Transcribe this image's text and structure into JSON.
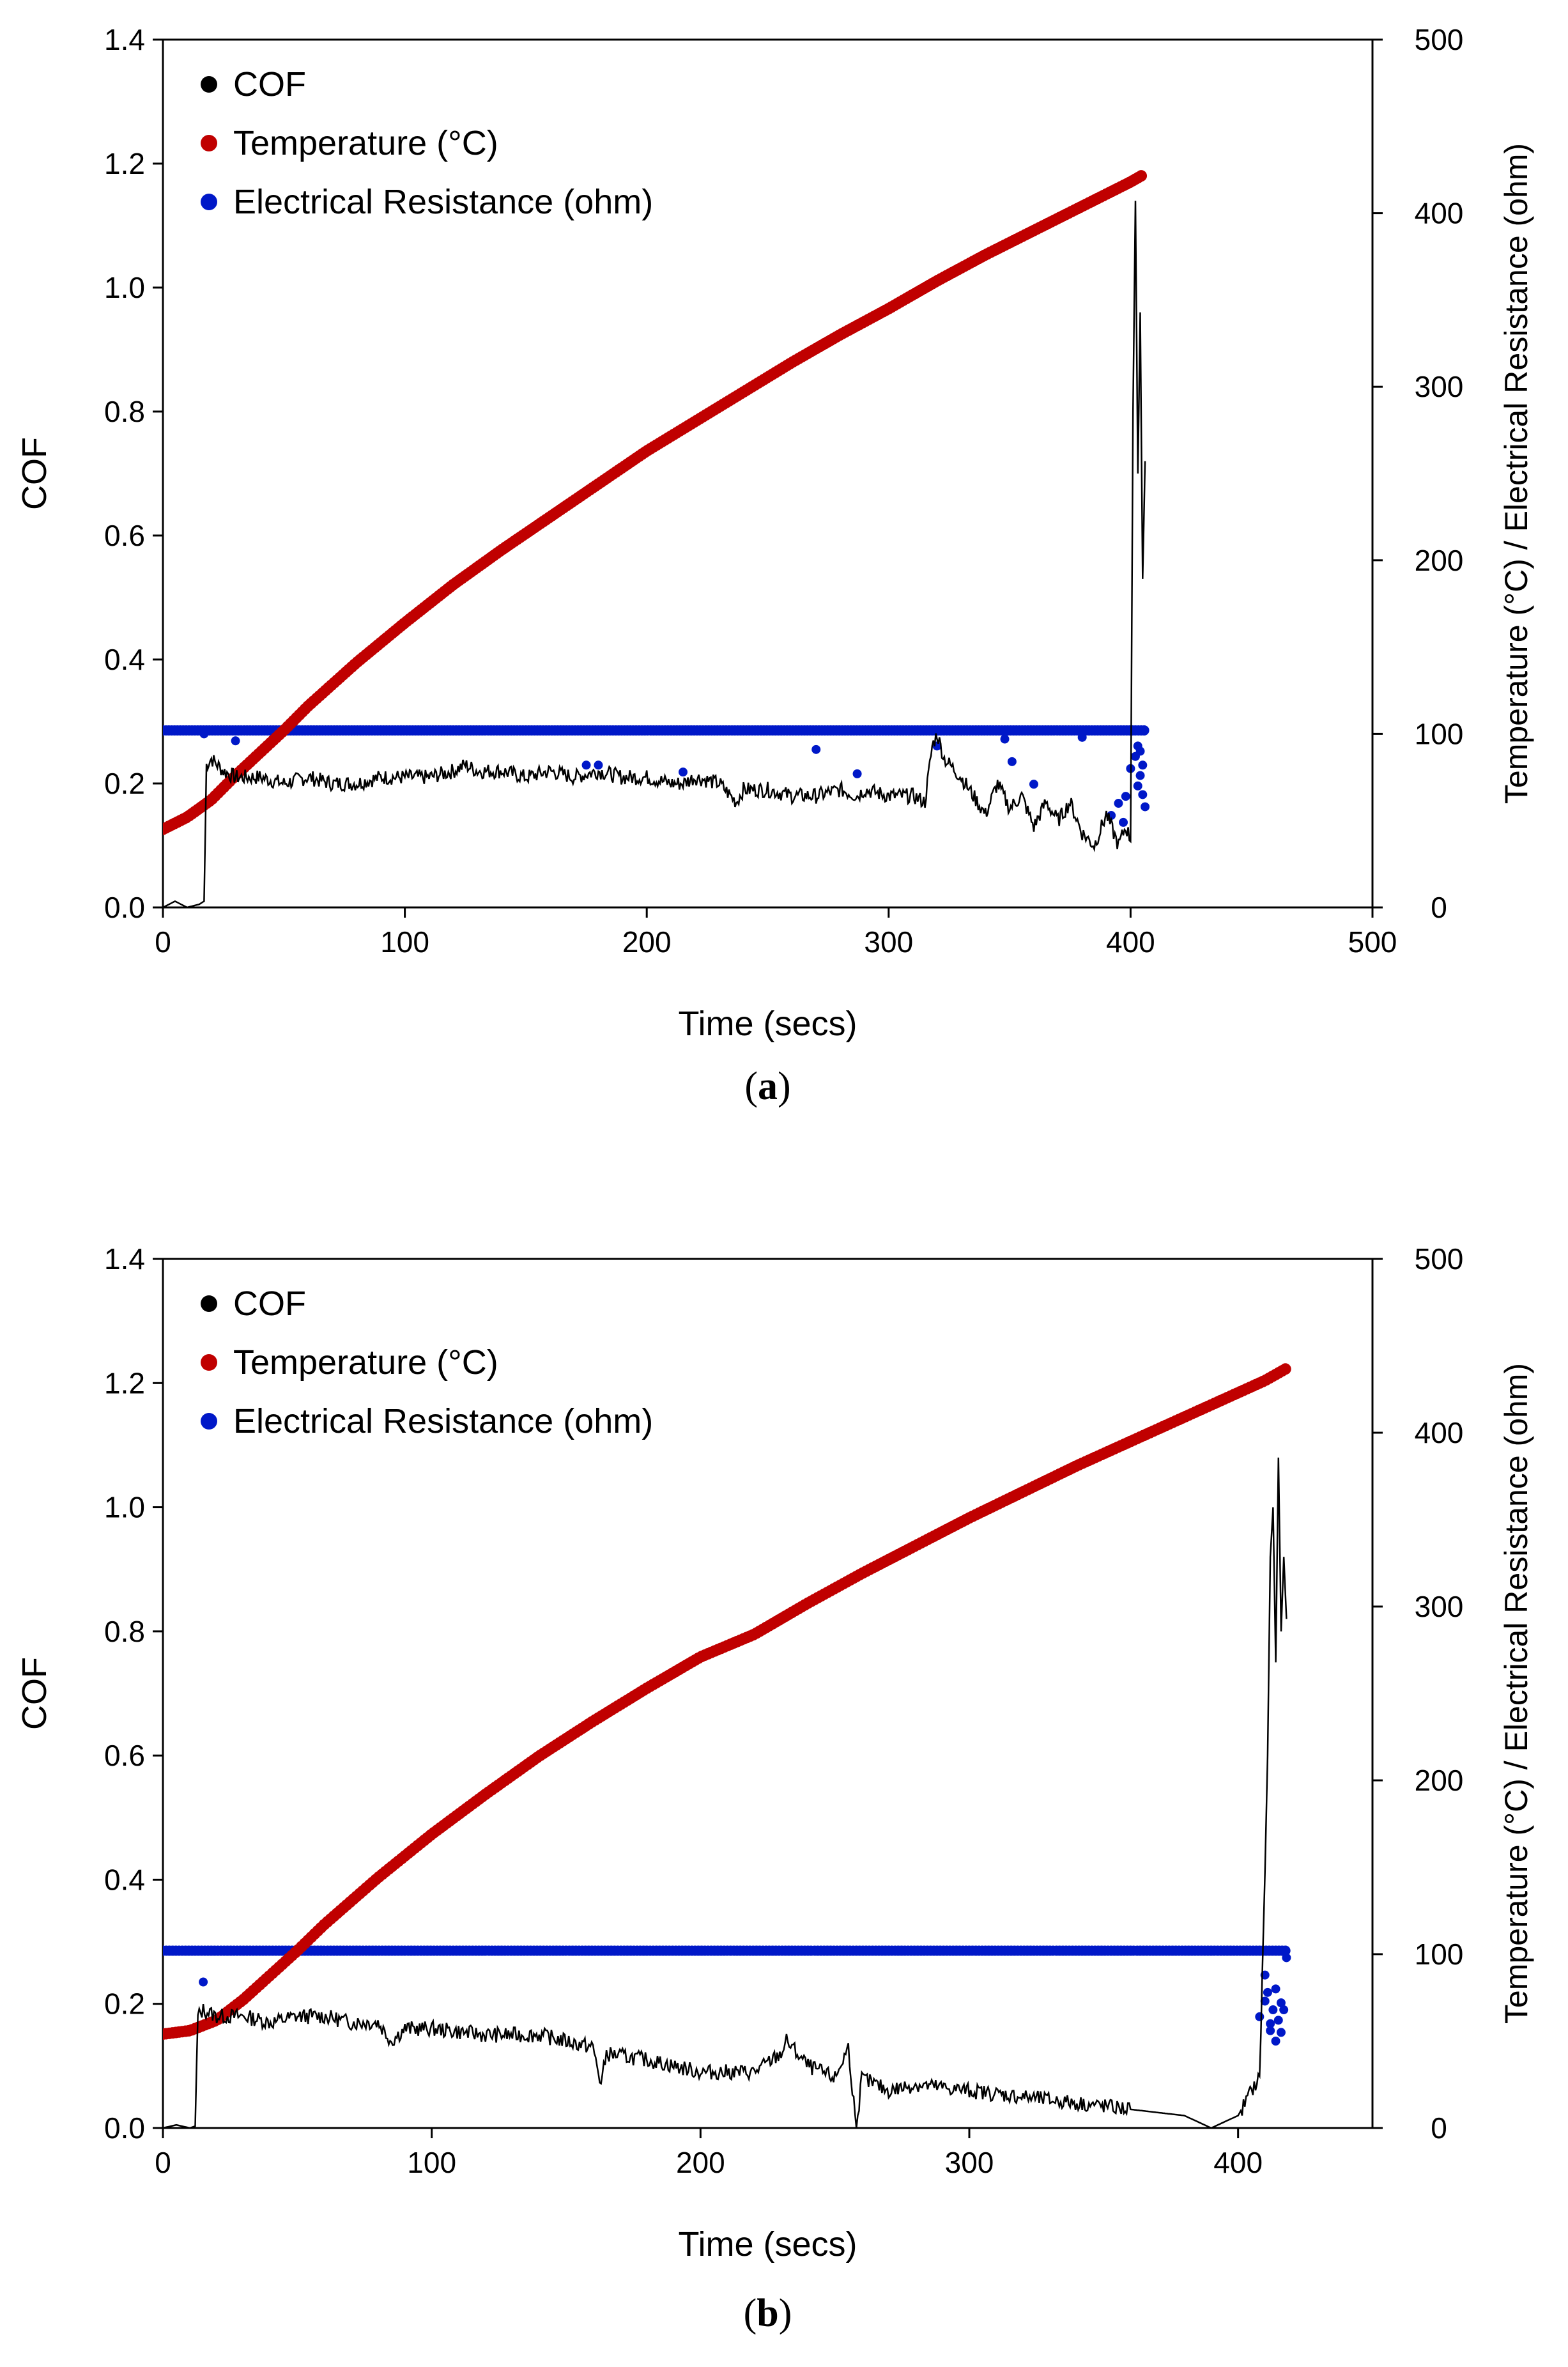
{
  "chart_data": [
    {
      "type": "line",
      "panel_label": "a",
      "xlabel": "Time (secs)",
      "ylabel": "COF",
      "y2label": "Temperature (°C) / Electrical Resistance (ohm)",
      "xlim": [
        0,
        500
      ],
      "ylim": [
        0,
        1.4
      ],
      "y2lim": [
        0,
        500
      ],
      "xticks": [
        "0",
        "100",
        "200",
        "300",
        "400",
        "500"
      ],
      "xtick_values": [
        0,
        100,
        200,
        300,
        400,
        500
      ],
      "yticks": [
        "0.0",
        "0.2",
        "0.4",
        "0.6",
        "0.8",
        "1.0",
        "1.2",
        "1.4"
      ],
      "ytick_values": [
        0,
        0.2,
        0.4,
        0.6,
        0.8,
        1.0,
        1.2,
        1.4
      ],
      "y2ticks": [
        "0",
        "100",
        "200",
        "300",
        "400",
        "500"
      ],
      "y2tick_values": [
        0,
        100,
        200,
        300,
        400,
        500
      ],
      "legend": [
        "COF",
        "Temperature (°C)",
        "Electrical Resistance (ohm)"
      ],
      "legend_position": "top-left",
      "colors": {
        "cof": "#000000",
        "temperature": "#c00000",
        "resistance": "#0018c8"
      },
      "series": [
        {
          "name": "COF",
          "axis": "left",
          "style": "line",
          "x": [
            0,
            5,
            10,
            15,
            17,
            18,
            20,
            25,
            30,
            40,
            50,
            60,
            70,
            80,
            90,
            100,
            110,
            120,
            125,
            130,
            140,
            150,
            160,
            170,
            180,
            190,
            200,
            210,
            215,
            220,
            230,
            237,
            240,
            250,
            260,
            270,
            280,
            287,
            290,
            300,
            310,
            315,
            318,
            320,
            323,
            330,
            340,
            345,
            350,
            355,
            360,
            365,
            370,
            375,
            380,
            385,
            390,
            395,
            398,
            400,
            401,
            402,
            403,
            404,
            405,
            406
          ],
          "y": [
            0.0,
            0.01,
            0.0,
            0.005,
            0.01,
            0.23,
            0.24,
            0.22,
            0.21,
            0.21,
            0.2,
            0.21,
            0.2,
            0.2,
            0.21,
            0.21,
            0.21,
            0.22,
            0.23,
            0.22,
            0.22,
            0.21,
            0.22,
            0.21,
            0.22,
            0.21,
            0.21,
            0.2,
            0.2,
            0.21,
            0.2,
            0.17,
            0.19,
            0.19,
            0.18,
            0.18,
            0.19,
            0.18,
            0.19,
            0.18,
            0.18,
            0.17,
            0.26,
            0.28,
            0.24,
            0.21,
            0.15,
            0.2,
            0.16,
            0.18,
            0.13,
            0.17,
            0.14,
            0.17,
            0.12,
            0.1,
            0.15,
            0.1,
            0.13,
            0.11,
            0.8,
            1.14,
            0.7,
            0.96,
            0.53,
            0.72
          ]
        },
        {
          "name": "Temperature (°C)",
          "axis": "right",
          "style": "markers",
          "x": [
            0,
            10,
            20,
            30,
            40,
            50,
            60,
            80,
            100,
            120,
            140,
            160,
            180,
            200,
            220,
            240,
            260,
            280,
            300,
            320,
            340,
            360,
            380,
            400,
            405
          ],
          "y": [
            45,
            52,
            62,
            76,
            89,
            102,
            116,
            141,
            164,
            186,
            206,
            225,
            244,
            263,
            280,
            297,
            314,
            330,
            345,
            361,
            376,
            390,
            404,
            418,
            422
          ]
        },
        {
          "name": "Electrical Resistance (ohm)",
          "axis": "right",
          "style": "markers",
          "x": [
            0,
            50,
            100,
            150,
            200,
            250,
            300,
            350,
            406
          ],
          "y": [
            102,
            102,
            102,
            102,
            102,
            102,
            102,
            102,
            102
          ],
          "outlier_x": [
            17,
            30,
            175,
            180,
            215,
            270,
            287,
            320,
            348,
            351,
            360,
            380,
            392,
            395,
            398,
            400,
            402,
            403,
            404,
            405,
            404,
            403,
            405,
            406,
            397
          ],
          "outlier_y": [
            100,
            96,
            82,
            82,
            78,
            91,
            77,
            93,
            97,
            84,
            71,
            98,
            53,
            60,
            64,
            80,
            87,
            93,
            90,
            82,
            76,
            70,
            65,
            58,
            49
          ]
        }
      ]
    },
    {
      "type": "line",
      "panel_label": "b",
      "xlabel": "Time (secs)",
      "ylabel": "COF",
      "y2label": "Temperature (°C) / Electrical Resistance (ohm)",
      "xlim": [
        0,
        450
      ],
      "ylim": [
        0,
        1.4
      ],
      "y2lim": [
        0,
        500
      ],
      "xticks": [
        "0",
        "100",
        "200",
        "300",
        "400"
      ],
      "xtick_values": [
        0,
        100,
        200,
        300,
        400
      ],
      "yticks": [
        "0.0",
        "0.2",
        "0.4",
        "0.6",
        "0.8",
        "1.0",
        "1.2",
        "1.4"
      ],
      "ytick_values": [
        0,
        0.2,
        0.4,
        0.6,
        0.8,
        1.0,
        1.2,
        1.4
      ],
      "y2ticks": [
        "0",
        "100",
        "200",
        "300",
        "400",
        "500"
      ],
      "y2tick_values": [
        0,
        100,
        200,
        300,
        400,
        500
      ],
      "legend": [
        "COF",
        "Temperature (°C)",
        "Electrical Resistance (ohm)"
      ],
      "legend_position": "top-left",
      "colors": {
        "cof": "#000000",
        "temperature": "#c00000",
        "resistance": "#0018c8"
      },
      "series": [
        {
          "name": "COF",
          "axis": "left",
          "style": "line",
          "x": [
            0,
            5,
            10,
            12,
            13,
            15,
            20,
            30,
            40,
            50,
            60,
            70,
            80,
            85,
            90,
            100,
            120,
            140,
            160,
            163,
            165,
            180,
            200,
            220,
            230,
            232,
            240,
            250,
            255,
            258,
            260,
            270,
            280,
            300,
            320,
            340,
            360,
            380,
            390,
            395,
            400,
            405,
            408,
            410,
            411,
            412,
            413,
            414,
            415,
            416,
            417,
            418
          ],
          "y": [
            0.0,
            0.005,
            0.0,
            0.003,
            0.18,
            0.19,
            0.18,
            0.18,
            0.17,
            0.18,
            0.18,
            0.17,
            0.17,
            0.14,
            0.16,
            0.16,
            0.15,
            0.15,
            0.13,
            0.07,
            0.12,
            0.11,
            0.09,
            0.09,
            0.12,
            0.14,
            0.1,
            0.08,
            0.13,
            0.0,
            0.08,
            0.06,
            0.07,
            0.06,
            0.05,
            0.04,
            0.03,
            0.02,
            0.0,
            0.01,
            0.02,
            0.06,
            0.08,
            0.41,
            0.6,
            0.92,
            1.0,
            0.75,
            1.08,
            0.8,
            0.92,
            0.82
          ]
        },
        {
          "name": "Temperature (°C)",
          "axis": "right",
          "style": "markers",
          "x": [
            0,
            10,
            20,
            30,
            40,
            50,
            60,
            80,
            100,
            120,
            140,
            160,
            180,
            200,
            220,
            240,
            260,
            280,
            300,
            320,
            340,
            360,
            380,
            400,
            410,
            418
          ],
          "y": [
            54,
            56,
            62,
            74,
            88,
            102,
            117,
            144,
            169,
            192,
            214,
            234,
            253,
            271,
            284,
            302,
            319,
            335,
            351,
            366,
            381,
            395,
            409,
            423,
            430,
            437
          ]
        },
        {
          "name": "Electrical Resistance (ohm)",
          "axis": "right",
          "style": "markers",
          "x": [
            0,
            50,
            100,
            150,
            200,
            250,
            300,
            350,
            418
          ],
          "y": [
            102,
            102,
            102,
            102,
            102,
            102,
            102,
            102,
            102
          ],
          "outlier_x": [
            15,
            408,
            410,
            411,
            412,
            413,
            414,
            415,
            416,
            417,
            418,
            410,
            412,
            414,
            416
          ],
          "outlier_y": [
            84,
            64,
            73,
            78,
            56,
            68,
            50,
            62,
            55,
            68,
            98,
            88,
            60,
            80,
            72
          ]
        }
      ]
    }
  ]
}
